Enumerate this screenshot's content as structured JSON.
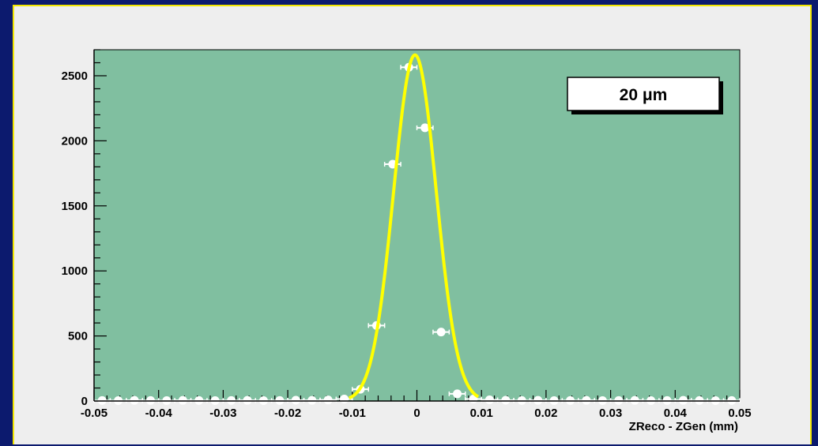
{
  "colors": {
    "outer_background": "#0c1a6e",
    "panel_background": "#eeeeee",
    "panel_border": "#f2e600",
    "plot_fill": "#80bfa0",
    "fit_curve": "#ffff00",
    "points": "#ffffff"
  },
  "chart_data": {
    "type": "scatter",
    "title": "",
    "xlabel": "ZReco - ZGen (mm)",
    "ylabel": "",
    "xlim": [
      -0.05,
      0.05
    ],
    "ylim": [
      0,
      2700
    ],
    "grid": false,
    "x_ticks": [
      -0.05,
      -0.04,
      -0.03,
      -0.02,
      -0.01,
      0,
      0.01,
      0.02,
      0.03,
      0.04,
      0.05
    ],
    "x_tick_labels": [
      "-0.05",
      "-0.04",
      "-0.03",
      "-0.02",
      "-0.01",
      "0",
      "0.01",
      "0.02",
      "0.03",
      "0.04",
      "0.05"
    ],
    "y_ticks": [
      0,
      500,
      1000,
      1500,
      2000,
      2500
    ],
    "y_tick_labels": [
      "0",
      "500",
      "1000",
      "1500",
      "2000",
      "2500"
    ],
    "legend": {
      "text": "20 μm",
      "placement": "top-right"
    },
    "series": [
      {
        "type": "points_with_xerr",
        "bin_width": 0.0025,
        "x": [
          -0.04875,
          -0.04625,
          -0.04375,
          -0.04125,
          -0.03875,
          -0.03625,
          -0.03375,
          -0.03125,
          -0.02875,
          -0.02625,
          -0.02375,
          -0.02125,
          -0.01875,
          -0.01625,
          -0.01375,
          -0.01125,
          -0.00875,
          -0.00625,
          -0.00375,
          -0.00125,
          0.00125,
          0.00375,
          0.00625,
          0.00875,
          0.01125,
          0.01375,
          0.01625,
          0.01875,
          0.02125,
          0.02375,
          0.02625,
          0.02875,
          0.03125,
          0.03375,
          0.03625,
          0.03875,
          0.04125,
          0.04375,
          0.04625,
          0.04875
        ],
        "y": [
          4,
          3,
          5,
          4,
          3,
          5,
          4,
          3,
          4,
          5,
          3,
          4,
          6,
          5,
          8,
          15,
          90,
          580,
          1820,
          2565,
          2100,
          530,
          55,
          15,
          9,
          6,
          4,
          5,
          3,
          4,
          5,
          3,
          4,
          5,
          3,
          4,
          5,
          4,
          3,
          4
        ]
      },
      {
        "type": "line",
        "fit": "gaussian",
        "amplitude": 2660,
        "mean": -0.0003,
        "sigma": 0.0033,
        "x_range": [
          -0.0105,
          0.0095
        ]
      }
    ]
  }
}
